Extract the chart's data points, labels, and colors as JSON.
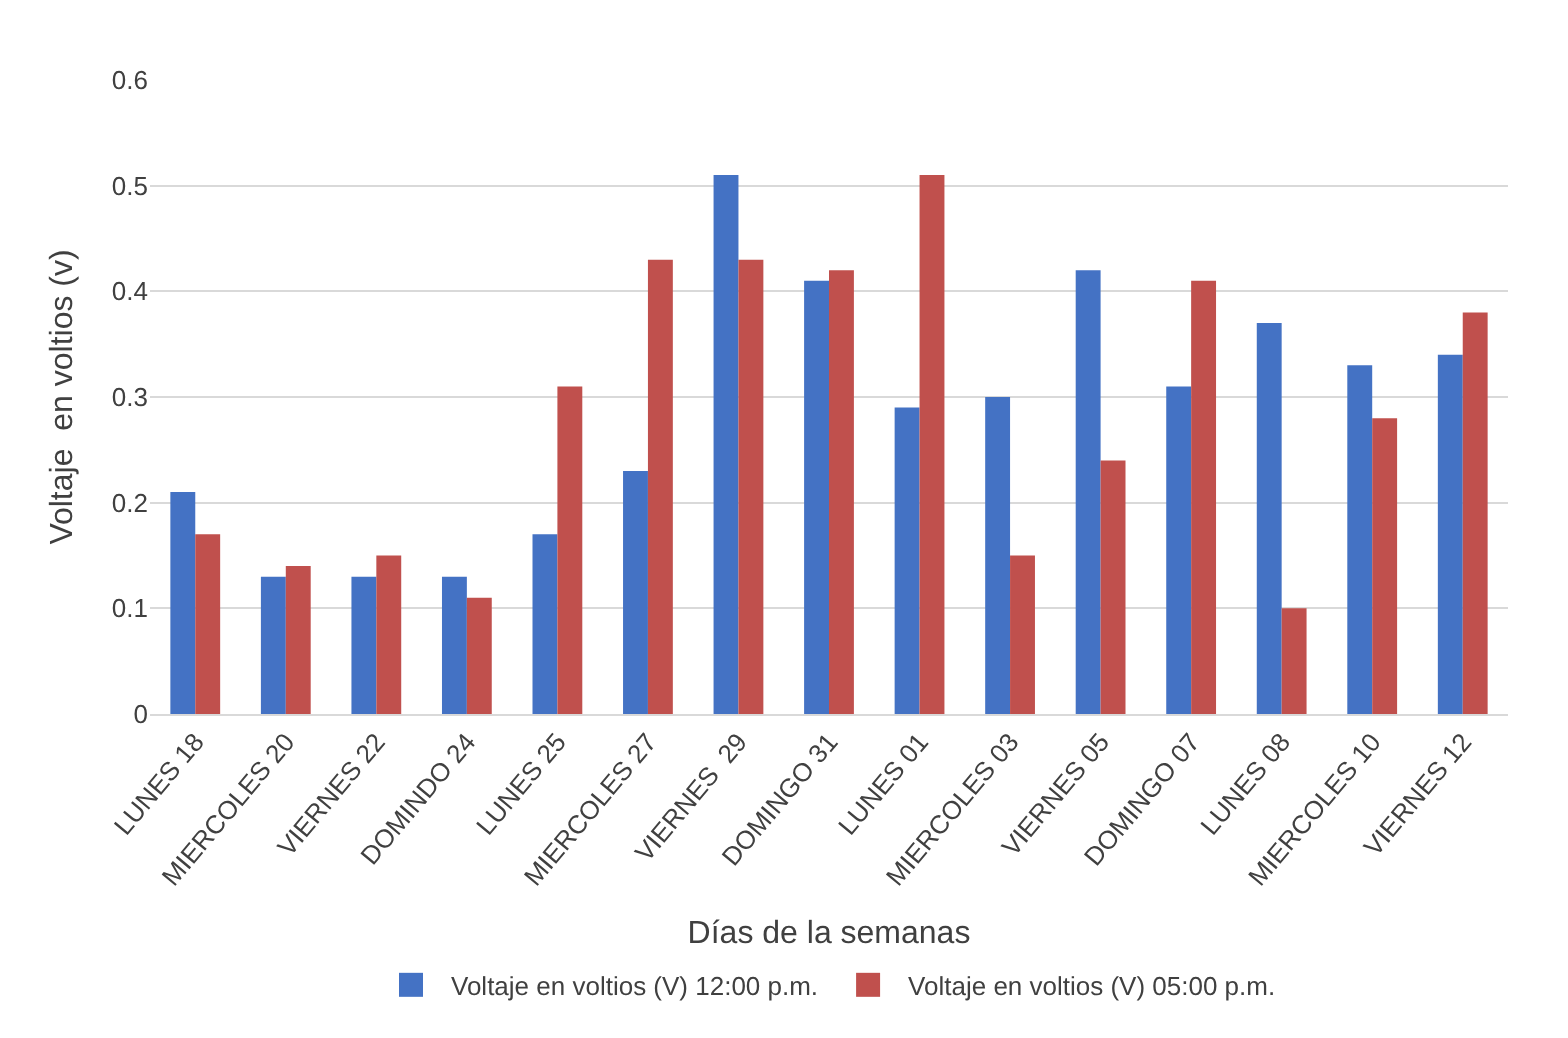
{
  "chart_data": {
    "type": "bar",
    "categories": [
      "LUNES 18",
      "MIERCOLES 20",
      "VIERNES 22",
      "DOMINDO 24",
      "LUNES 25",
      "MIERCOLES 27",
      "VIERNES  29",
      "DOMINGO 31",
      "LUNES 01",
      "MIERCOLES 03",
      "VIERNES 05",
      "DOMINGO 07",
      "LUNES 08",
      "MIERCOLES 10",
      "VIERNES 12"
    ],
    "series": [
      {
        "name": "Voltaje en voltios (V) 12:00 p.m.",
        "color": "#4472c4",
        "values": [
          0.21,
          0.13,
          0.13,
          0.13,
          0.17,
          0.23,
          0.51,
          0.41,
          0.29,
          0.3,
          0.42,
          0.31,
          0.37,
          0.33,
          0.34
        ]
      },
      {
        "name": "Voltaje en voltios (V) 05:00 p.m.",
        "color": "#c0504d",
        "values": [
          0.17,
          0.14,
          0.15,
          0.11,
          0.31,
          0.43,
          0.43,
          0.42,
          0.51,
          0.15,
          0.24,
          0.41,
          0.1,
          0.28,
          0.38
        ]
      }
    ],
    "xlabel": "Días de la semanas",
    "ylabel": "Voltaje  en voltios (v)",
    "ylim": [
      0,
      0.6
    ],
    "yticks": [
      0,
      0.1,
      0.2,
      0.3,
      0.4,
      0.5,
      0.6
    ],
    "grid": "y",
    "legend": "bottom"
  }
}
